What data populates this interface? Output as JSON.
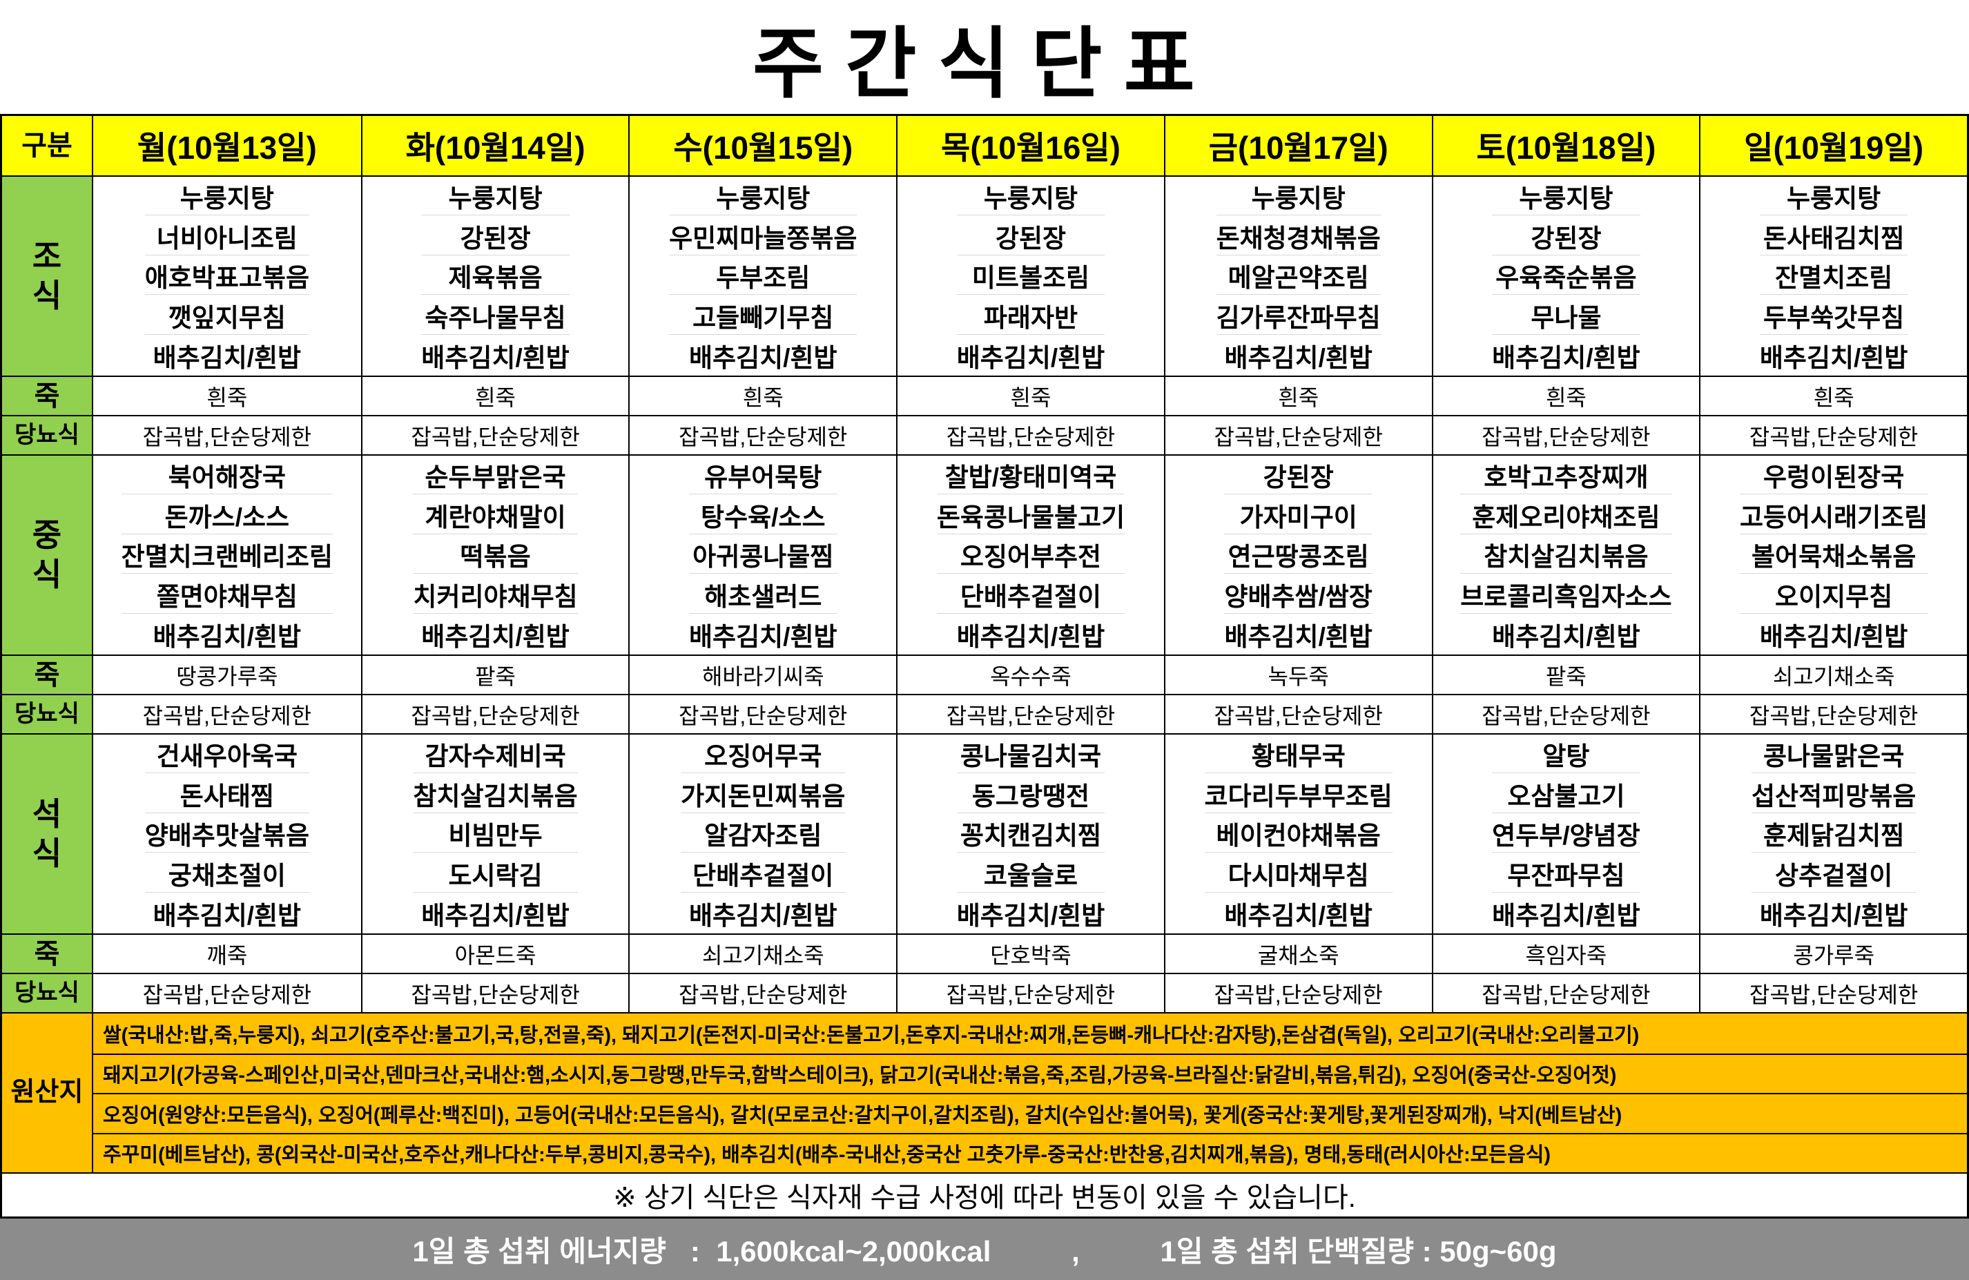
{
  "title": "주간식단표",
  "header": {
    "category": "구분",
    "days": [
      "월(10월13일)",
      "화(10월14일)",
      "수(10월15일)",
      "목(10월16일)",
      "금(10월17일)",
      "토(10월18일)",
      "일(10월19일)"
    ]
  },
  "labels": {
    "breakfast": "조\n식",
    "lunch": "중\n식",
    "dinner": "석\n식",
    "porridge": "죽",
    "diabetic": "당뇨식",
    "origin": "원산지"
  },
  "meals": {
    "breakfast": [
      [
        "누룽지탕",
        "너비아니조림",
        "애호박표고볶음",
        "깻잎지무침",
        "배추김치/흰밥"
      ],
      [
        "누룽지탕",
        "강된장",
        "제육볶음",
        "숙주나물무침",
        "배추김치/흰밥"
      ],
      [
        "누룽지탕",
        "우민찌마늘쫑볶음",
        "두부조림",
        "고들빼기무침",
        "배추김치/흰밥"
      ],
      [
        "누룽지탕",
        "강된장",
        "미트볼조림",
        "파래자반",
        "배추김치/흰밥"
      ],
      [
        "누룽지탕",
        "돈채청경채볶음",
        "메알곤약조림",
        "김가루잔파무침",
        "배추김치/흰밥"
      ],
      [
        "누룽지탕",
        "강된장",
        "우육죽순볶음",
        "무나물",
        "배추김치/흰밥"
      ],
      [
        "누룽지탕",
        "돈사태김치찜",
        "잔멸치조림",
        "두부쑥갓무침",
        "배추김치/흰밥"
      ]
    ],
    "lunch": [
      [
        "북어해장국",
        "돈까스/소스",
        "잔멸치크랜베리조림",
        "쫄면야채무침",
        "배추김치/흰밥"
      ],
      [
        "순두부맑은국",
        "계란야채말이",
        "떡볶음",
        "치커리야채무침",
        "배추김치/흰밥"
      ],
      [
        "유부어묵탕",
        "탕수육/소스",
        "아귀콩나물찜",
        "해초샐러드",
        "배추김치/흰밥"
      ],
      [
        "찰밥/황태미역국",
        "돈육콩나물불고기",
        "오징어부추전",
        "단배추겉절이",
        "배추김치/흰밥"
      ],
      [
        "강된장",
        "가자미구이",
        "연근땅콩조림",
        "양배추쌈/쌈장",
        "배추김치/흰밥"
      ],
      [
        "호박고추장찌개",
        "훈제오리야채조림",
        "참치살김치볶음",
        "브로콜리흑임자소스",
        "배추김치/흰밥"
      ],
      [
        "우렁이된장국",
        "고등어시래기조림",
        "볼어묵채소볶음",
        "오이지무침",
        "배추김치/흰밥"
      ]
    ],
    "dinner": [
      [
        "건새우아욱국",
        "돈사태찜",
        "양배추맛살볶음",
        "궁채초절이",
        "배추김치/흰밥"
      ],
      [
        "감자수제비국",
        "참치살김치볶음",
        "비빔만두",
        "도시락김",
        "배추김치/흰밥"
      ],
      [
        "오징어무국",
        "가지돈민찌볶음",
        "알감자조림",
        "단배추겉절이",
        "배추김치/흰밥"
      ],
      [
        "콩나물김치국",
        "동그랑땡전",
        "꽁치캔김치찜",
        "코울슬로",
        "배추김치/흰밥"
      ],
      [
        "황태무국",
        "코다리두부무조림",
        "베이컨야채볶음",
        "다시마채무침",
        "배추김치/흰밥"
      ],
      [
        "알탕",
        "오삼불고기",
        "연두부/양념장",
        "무잔파무침",
        "배추김치/흰밥"
      ],
      [
        "콩나물맑은국",
        "섭산적피망볶음",
        "훈제닭김치찜",
        "상추겉절이",
        "배추김치/흰밥"
      ]
    ]
  },
  "porridge": {
    "breakfast": [
      "흰죽",
      "흰죽",
      "흰죽",
      "흰죽",
      "흰죽",
      "흰죽",
      "흰죽"
    ],
    "lunch": [
      "땅콩가루죽",
      "팥죽",
      "해바라기씨죽",
      "옥수수죽",
      "녹두죽",
      "팥죽",
      "쇠고기채소죽"
    ],
    "dinner": [
      "깨죽",
      "아몬드죽",
      "쇠고기채소죽",
      "단호박죽",
      "굴채소죽",
      "흑임자죽",
      "콩가루죽"
    ]
  },
  "diabetic_text": "잡곡밥,단순당제한",
  "origin_lines": [
    "쌀(국내산:밥,죽,누룽지), 쇠고기(호주산:불고기,국,탕,전골,죽), 돼지고기(돈전지-미국산:돈불고기,돈후지-국내산:찌개,돈등뼈-캐나다산:감자탕),돈삼겹(독일), 오리고기(국내산:오리불고기)",
    "돼지고기(가공육-스페인산,미국산,덴마크산,국내산:햄,소시지,동그랑땡,만두국,함박스테이크), 닭고기(국내산:볶음,죽,조림,가공육-브라질산:닭갈비,볶음,튀김), 오징어(중국산-오징어젓)",
    "오징어(원양산:모든음식), 오징어(페루산:백진미), 고등어(국내산:모든음식), 갈치(모로코산:갈치구이,갈치조림), 갈치(수입산:볼어묵), 꽃게(중국산:꽃게탕,꽃게된장찌개), 낙지(베트남산)",
    "주꾸미(베트남산), 콩(외국산-미국산,호주산,캐나다산:두부,콩비지,콩국수), 배추김치(배추-국내산,중국산 고춧가루-중국산:반찬용,김치찌개,볶음), 명태,동태(러시아산:모든음식)"
  ],
  "footnote": "※ 상기 식단은 식자재 수급 사정에 따라 변동이 있을 수 있습니다.",
  "footer": "1일 총 섭취 에너지량   :  1,600kcal~2,000kcal          ,          1일 총 섭취 단백질량 : 50g~60g",
  "colors": {
    "header_bg": "#FFFF00",
    "label_bg": "#92D050",
    "origin_bg": "#FFC000",
    "footer_bg": "#8C8C8C"
  }
}
